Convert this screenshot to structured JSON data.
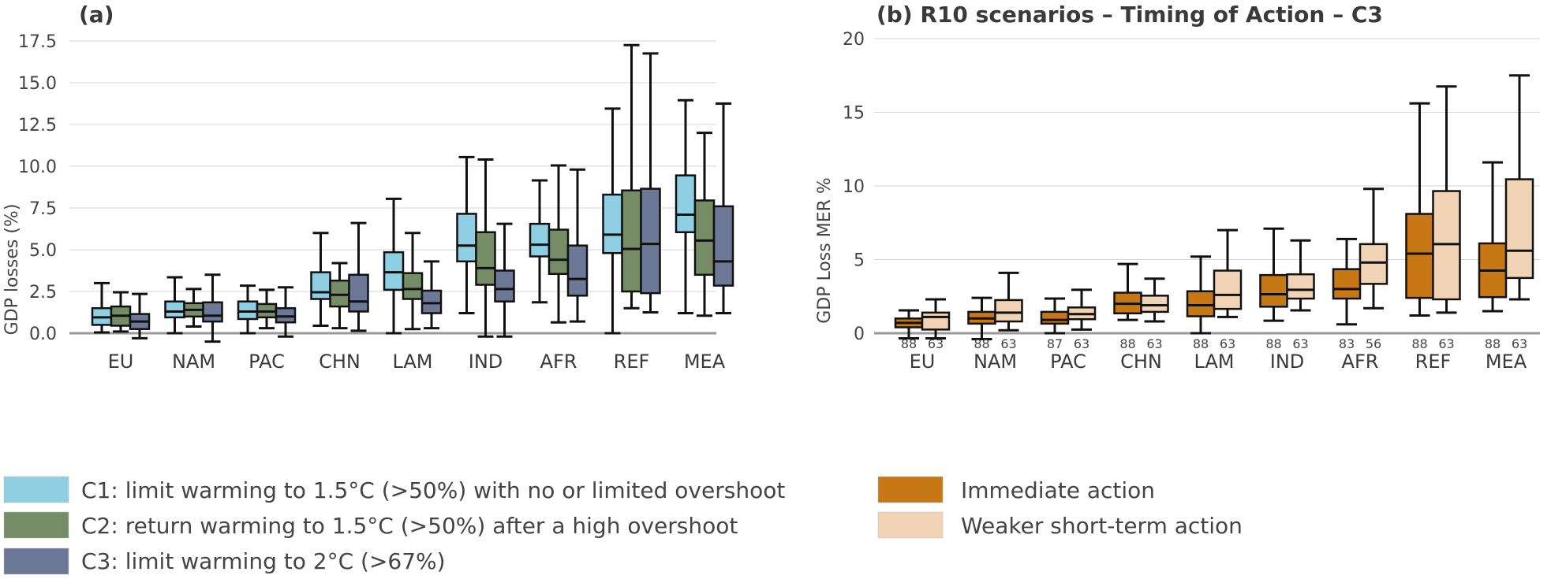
{
  "chart_data": [
    {
      "type": "box",
      "panel_label": "(a)",
      "ylabel": "GDP losses (%)",
      "ylim": [
        0,
        17.5
      ],
      "yticks": [
        "0.0",
        "2.5",
        "5.0",
        "7.5",
        "10.0",
        "12.5",
        "15.0",
        "17.5"
      ],
      "grid": true,
      "categories": [
        "EU",
        "NAM",
        "PAC",
        "CHN",
        "LAM",
        "IND",
        "AFR",
        "REF",
        "MEA"
      ],
      "legend_position": "bottom",
      "series": [
        {
          "name": "C1: limit warming to 1.5°C (>50%) with no or limited overshoot",
          "color": "#8fcfe4",
          "boxes": [
            [
              0.05,
              0.5,
              0.95,
              1.5,
              3.0
            ],
            [
              0.0,
              0.95,
              1.3,
              1.9,
              3.35
            ],
            [
              0.0,
              0.85,
              1.3,
              1.9,
              2.85
            ],
            [
              0.45,
              2.05,
              2.45,
              3.65,
              6.0
            ],
            [
              0.0,
              2.6,
              3.65,
              4.85,
              8.05
            ],
            [
              1.2,
              4.3,
              5.25,
              7.15,
              10.55
            ],
            [
              1.85,
              4.6,
              5.3,
              6.55,
              9.15
            ],
            [
              0.0,
              4.8,
              5.9,
              8.3,
              13.45
            ],
            [
              1.2,
              6.05,
              7.1,
              9.45,
              13.95
            ]
          ]
        },
        {
          "name": "C2: return warming to 1.5°C (>50%) after a high overshoot",
          "color": "#758c66",
          "boxes": [
            [
              0.1,
              0.45,
              1.05,
              1.6,
              2.45
            ],
            [
              0.4,
              1.0,
              1.4,
              1.8,
              2.65
            ],
            [
              0.3,
              0.95,
              1.3,
              1.75,
              2.6
            ],
            [
              0.3,
              1.6,
              2.3,
              3.15,
              4.2
            ],
            [
              0.25,
              2.05,
              2.65,
              3.6,
              6.0
            ],
            [
              -0.2,
              2.9,
              3.9,
              6.05,
              10.4
            ],
            [
              0.65,
              3.55,
              4.4,
              6.2,
              10.05
            ],
            [
              1.5,
              2.5,
              5.05,
              8.55,
              17.25
            ],
            [
              1.05,
              3.5,
              5.55,
              7.95,
              12.0
            ]
          ]
        },
        {
          "name": "C3: limit warming to 2°C (>67%)",
          "color": "#6c7895",
          "boxes": [
            [
              -0.3,
              0.25,
              0.7,
              1.15,
              2.35
            ],
            [
              -0.5,
              0.7,
              1.05,
              1.85,
              3.5
            ],
            [
              -0.2,
              0.65,
              1.0,
              1.5,
              2.75
            ],
            [
              0.15,
              1.3,
              1.9,
              3.5,
              6.6
            ],
            [
              0.3,
              1.2,
              1.8,
              2.55,
              4.3
            ],
            [
              -0.2,
              1.9,
              2.65,
              3.75,
              6.55
            ],
            [
              0.7,
              2.25,
              3.25,
              5.25,
              9.8
            ],
            [
              1.25,
              2.4,
              5.35,
              8.65,
              16.75
            ],
            [
              1.2,
              2.85,
              4.3,
              7.6,
              13.75
            ]
          ]
        }
      ]
    },
    {
      "type": "box",
      "title": "(b) R10 scenarios – Timing of Action – C3",
      "ylabel": "GDP Loss MER %",
      "ylim": [
        0,
        20
      ],
      "yticks": [
        "0",
        "5",
        "10",
        "15",
        "20"
      ],
      "grid": true,
      "categories": [
        "EU",
        "NAM",
        "PAC",
        "CHN",
        "LAM",
        "IND",
        "AFR",
        "REF",
        "MEA"
      ],
      "legend_position": "bottom",
      "series": [
        {
          "name": "Immediate action",
          "color": "#c87715",
          "counts": [
            "88",
            "88",
            "87",
            "88",
            "88",
            "88",
            "83",
            "88",
            "88"
          ],
          "boxes": [
            [
              -0.35,
              0.4,
              0.7,
              1.0,
              1.55
            ],
            [
              -0.4,
              0.65,
              1.0,
              1.45,
              2.4
            ],
            [
              0.0,
              0.65,
              0.9,
              1.45,
              2.35
            ],
            [
              0.9,
              1.35,
              2.0,
              2.75,
              4.7
            ],
            [
              0.0,
              1.15,
              1.9,
              2.85,
              5.2
            ],
            [
              0.85,
              1.8,
              2.65,
              3.95,
              7.1
            ],
            [
              0.6,
              2.35,
              3.0,
              4.35,
              6.4
            ],
            [
              1.2,
              2.4,
              5.4,
              8.1,
              15.6
            ],
            [
              1.5,
              2.45,
              4.25,
              6.1,
              11.6
            ]
          ]
        },
        {
          "name": "Weaker short-term action",
          "color": "#f1d4b6",
          "counts": [
            "63",
            "63",
            "63",
            "63",
            "63",
            "63",
            "56",
            "63",
            "63"
          ],
          "boxes": [
            [
              -0.35,
              0.25,
              1.1,
              1.4,
              2.3
            ],
            [
              0.2,
              0.8,
              1.4,
              2.25,
              4.1
            ],
            [
              0.25,
              0.95,
              1.3,
              1.75,
              2.95
            ],
            [
              0.8,
              1.45,
              1.9,
              2.55,
              3.7
            ],
            [
              1.1,
              1.65,
              2.6,
              4.25,
              7.0
            ],
            [
              1.55,
              2.35,
              2.95,
              4.0,
              6.3
            ],
            [
              1.7,
              3.35,
              4.8,
              6.05,
              9.8
            ],
            [
              1.4,
              2.3,
              6.05,
              9.65,
              16.75
            ],
            [
              2.3,
              3.75,
              5.6,
              10.45,
              17.5
            ]
          ]
        }
      ]
    }
  ]
}
